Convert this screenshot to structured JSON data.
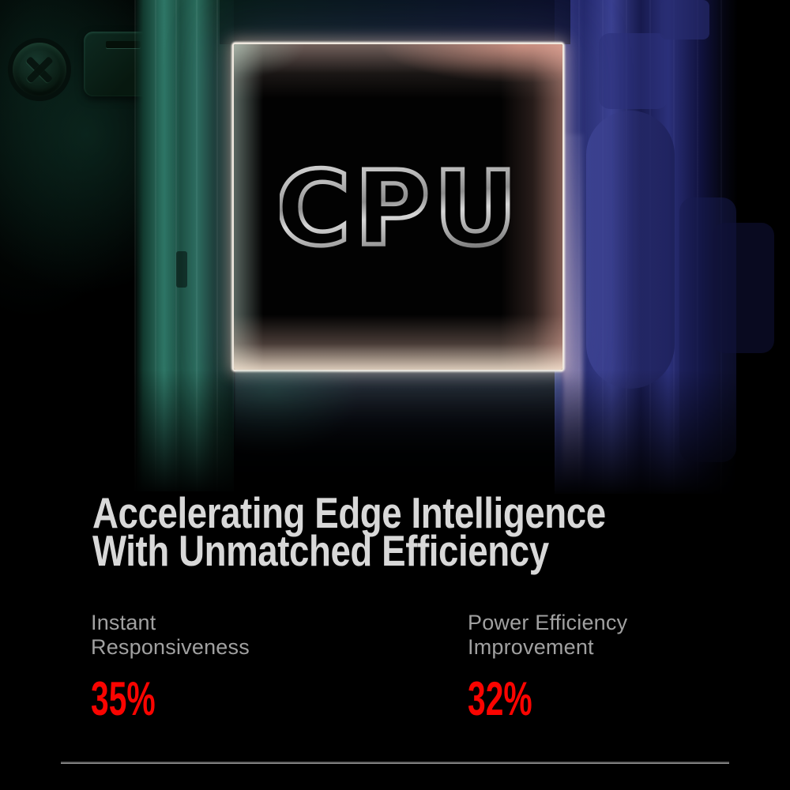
{
  "poster": {
    "chip": {
      "label": "CPU"
    },
    "headline": {
      "line1": "Accelerating Edge Intelligence",
      "line2": "With Unmatched Efficiency"
    },
    "stats": [
      {
        "label_line1": "Instant",
        "label_line2": "Responsiveness",
        "value": "35%"
      },
      {
        "label_line1": "Power Efficiency",
        "label_line2": "Improvement",
        "value": "32%"
      }
    ],
    "colors": {
      "background": "#000000",
      "accent_red": "#FA0400",
      "headline_text": "#D8D8D8",
      "label_text": "#A1A1A1",
      "divider": "#8F8F8F",
      "chip_glow_warm": "#FFD9C8",
      "teal_glow": "#2E7666",
      "indigo_panel": "#232A74",
      "metal_light": "#E4E4E4",
      "metal_dark": "#6F6F6F"
    }
  }
}
